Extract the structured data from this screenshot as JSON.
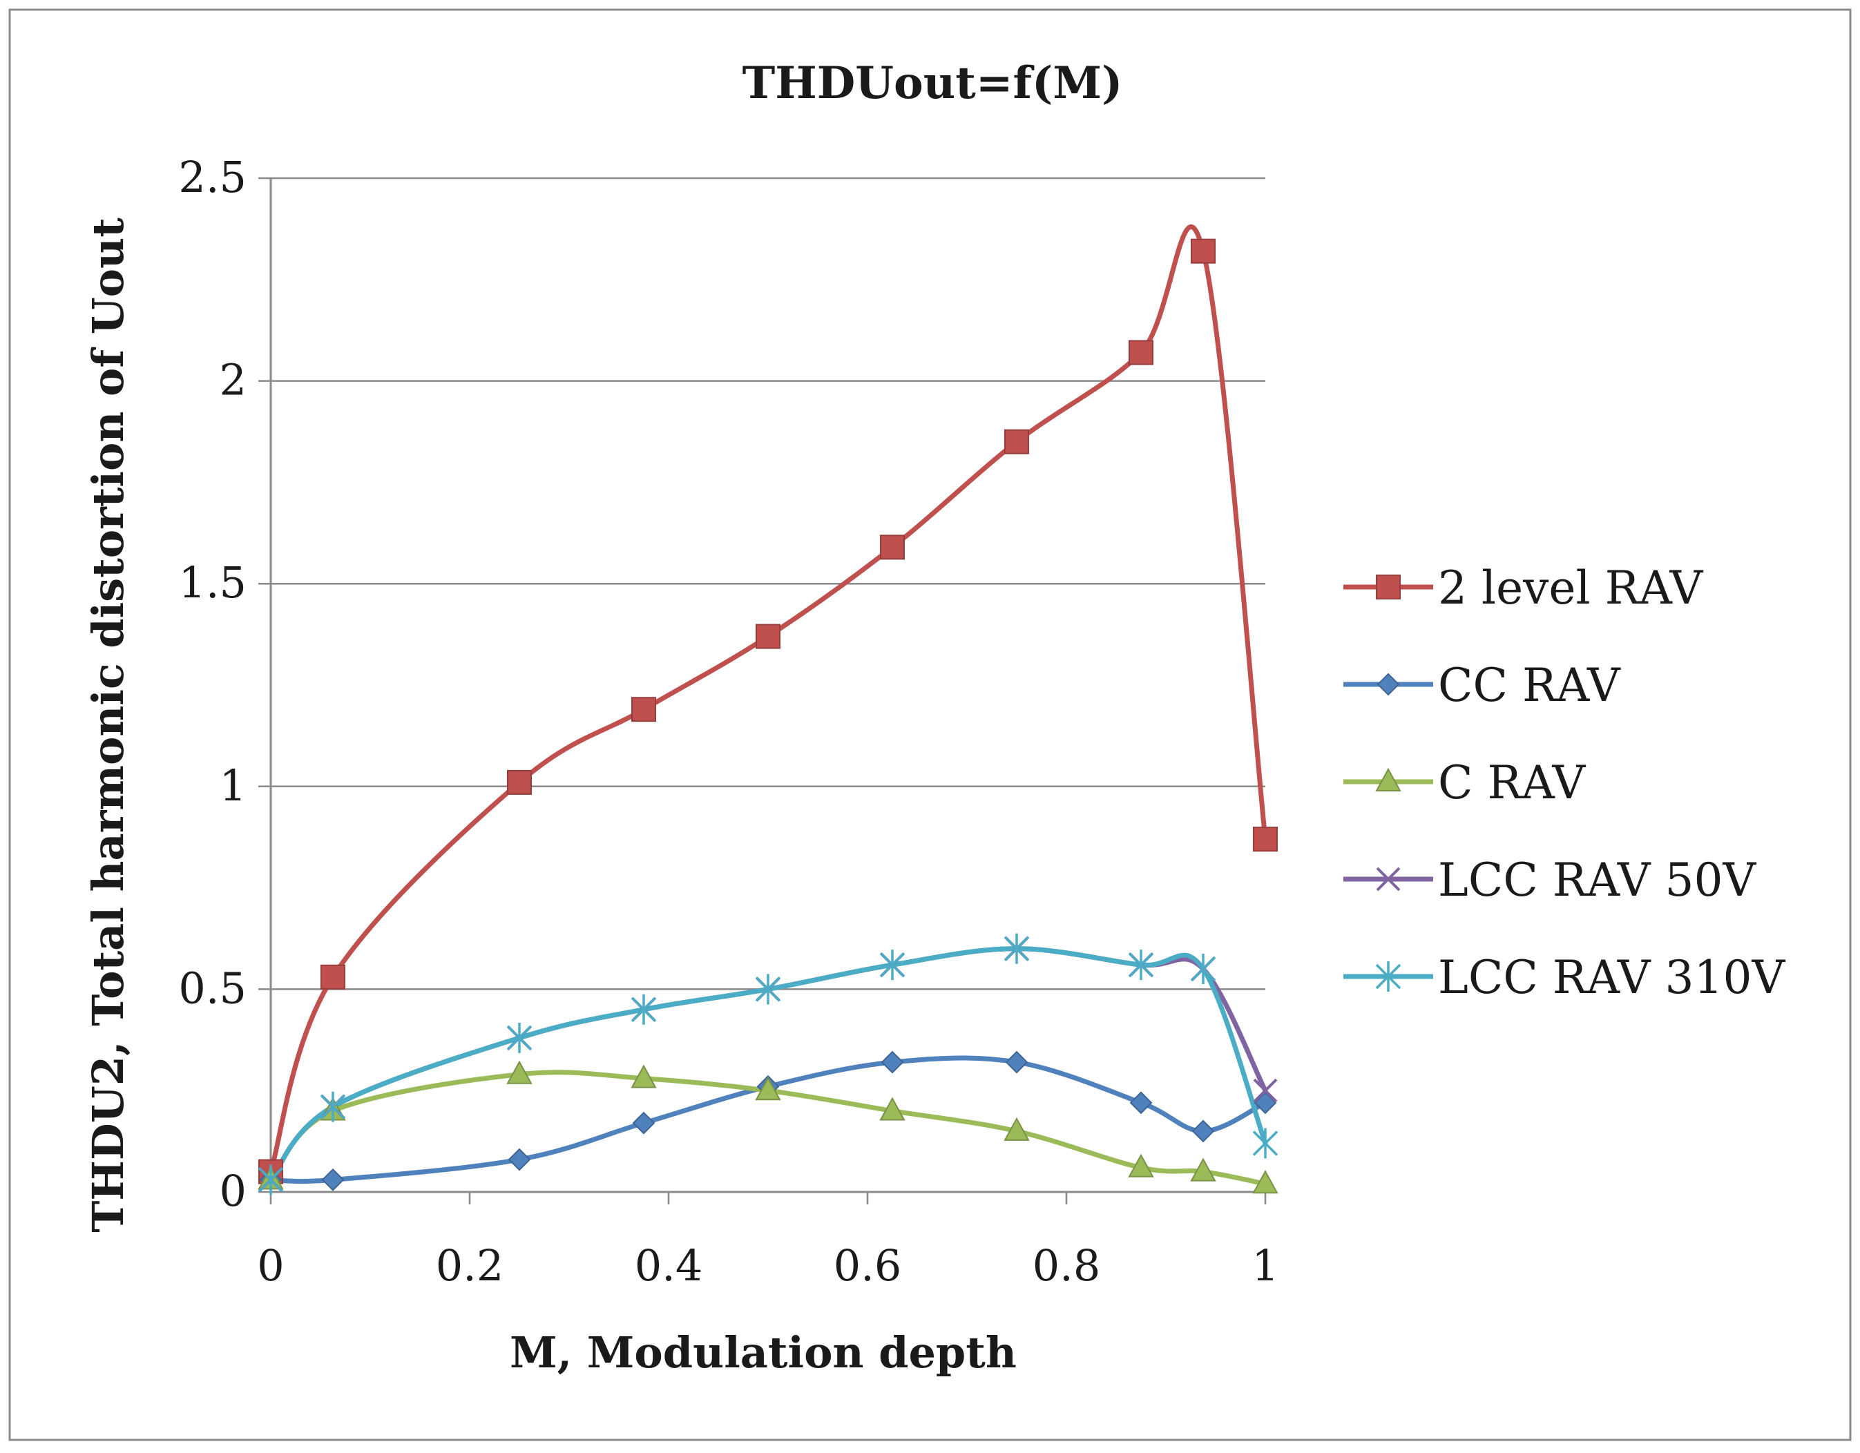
{
  "chart_data": {
    "type": "line",
    "title": "THDUout=f(M)",
    "xlabel": "M, Modulation depth",
    "ylabel": "THDU2, Total harmonic distortion of Uout",
    "xlim": [
      0,
      1
    ],
    "ylim": [
      0,
      2.5
    ],
    "xticks": [
      0,
      0.2,
      0.4,
      0.6,
      0.8,
      1
    ],
    "xtick_labels": [
      "0",
      "0.2",
      "0.4",
      "0.6",
      "0.8",
      "1"
    ],
    "yticks": [
      0,
      0.5,
      1,
      1.5,
      2,
      2.5
    ],
    "ytick_labels": [
      "0",
      "0.5",
      "1",
      "1.5",
      "2",
      "2.5"
    ],
    "grid": "horizontal",
    "legend_position": "right",
    "series": [
      {
        "name": "2 level RAV",
        "color": "#c0504d",
        "marker": "square",
        "x": [
          0,
          0.0625,
          0.25,
          0.375,
          0.5,
          0.625,
          0.75,
          0.875,
          0.9375,
          1
        ],
        "y": [
          0.05,
          0.53,
          1.01,
          1.19,
          1.37,
          1.59,
          1.85,
          2.07,
          2.32,
          0.87
        ]
      },
      {
        "name": "CC RAV",
        "color": "#4f81bd",
        "marker": "diamond",
        "x": [
          0,
          0.0625,
          0.25,
          0.375,
          0.5,
          0.625,
          0.75,
          0.875,
          0.9375,
          1
        ],
        "y": [
          0.03,
          0.03,
          0.08,
          0.17,
          0.26,
          0.32,
          0.32,
          0.22,
          0.15,
          0.22
        ]
      },
      {
        "name": "C RAV",
        "color": "#9bbb59",
        "marker": "triangle",
        "x": [
          0,
          0.0625,
          0.25,
          0.375,
          0.5,
          0.625,
          0.75,
          0.875,
          0.9375,
          1
        ],
        "y": [
          0.03,
          0.2,
          0.29,
          0.28,
          0.25,
          0.2,
          0.15,
          0.06,
          0.05,
          0.02
        ]
      },
      {
        "name": "LCC RAV 50V",
        "color": "#8064a2",
        "marker": "x",
        "x": [
          0,
          0.0625,
          0.25,
          0.375,
          0.5,
          0.625,
          0.75,
          0.875,
          0.9375,
          1
        ],
        "y": [
          0.03,
          0.21,
          0.38,
          0.45,
          0.5,
          0.56,
          0.6,
          0.56,
          0.55,
          0.25
        ]
      },
      {
        "name": "LCC RAV 310V",
        "color": "#4bacc6",
        "marker": "star",
        "x": [
          0,
          0.0625,
          0.25,
          0.375,
          0.5,
          0.625,
          0.75,
          0.875,
          0.9375,
          1
        ],
        "y": [
          0.03,
          0.21,
          0.38,
          0.45,
          0.5,
          0.56,
          0.6,
          0.56,
          0.55,
          0.12
        ]
      }
    ]
  }
}
